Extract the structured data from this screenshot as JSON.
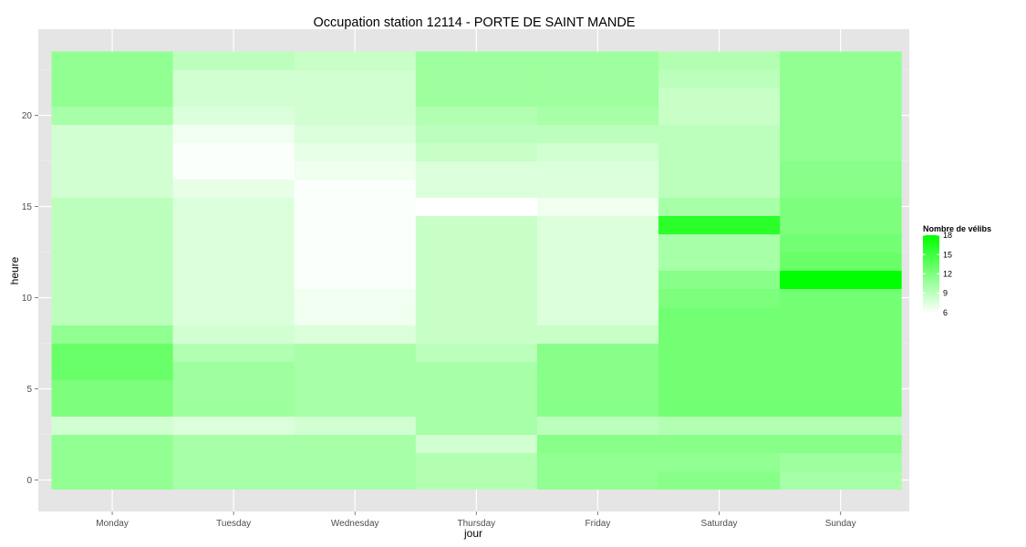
{
  "chart_data": {
    "type": "heatmap",
    "title": "Occupation station 12114 - PORTE DE SAINT MANDE",
    "xlabel": "jour",
    "ylabel": "heure",
    "x_categories": [
      "Monday",
      "Tuesday",
      "Wednesday",
      "Thursday",
      "Friday",
      "Saturday",
      "Sunday"
    ],
    "y_hours": [
      0,
      1,
      2,
      3,
      4,
      5,
      6,
      7,
      8,
      9,
      10,
      11,
      12,
      13,
      14,
      15,
      16,
      17,
      18,
      19,
      20,
      21,
      22,
      23
    ],
    "ylim": [
      -0.5,
      23.5
    ],
    "y_ticks": [
      0,
      5,
      10,
      15,
      20
    ],
    "grid": true,
    "legend": {
      "title": "Nombre de vélibs",
      "position": "right",
      "min": 5.8,
      "max": 18,
      "ticks": [
        6,
        9,
        12,
        15,
        18
      ],
      "low_color": "#ffffff",
      "high_color": "#00ff00"
    },
    "series": [
      {
        "name": "Monday",
        "values": [
          11,
          11,
          11,
          8,
          12,
          12,
          13,
          13,
          11,
          9,
          9,
          9,
          9,
          9,
          9,
          9,
          8,
          8,
          8,
          8,
          10,
          11,
          11,
          11
        ]
      },
      {
        "name": "Tuesday",
        "values": [
          10,
          10,
          10,
          7.5,
          10.5,
          10.5,
          10.5,
          9.5,
          8,
          7.5,
          7.5,
          7.5,
          7.5,
          7.5,
          7.5,
          7.5,
          7,
          6,
          6,
          6.5,
          7.5,
          8,
          8,
          9
        ]
      },
      {
        "name": "Wednesday",
        "values": [
          10,
          10,
          10,
          8,
          10,
          10,
          10,
          10,
          7.5,
          6.5,
          6.5,
          6,
          6,
          6,
          6,
          6,
          6,
          6.5,
          7,
          7.5,
          8,
          8,
          8,
          8.5
        ]
      },
      {
        "name": "Thursday",
        "values": [
          9.5,
          9.5,
          8,
          10,
          10,
          10,
          10,
          9,
          8.5,
          8.5,
          8.5,
          8.5,
          8.5,
          8.5,
          8.5,
          5.8,
          7.5,
          7.5,
          8.5,
          9,
          9.5,
          10.5,
          10.5,
          10.5
        ]
      },
      {
        "name": "Friday",
        "values": [
          11,
          11,
          11.5,
          9,
          11.5,
          11.5,
          11.5,
          11.5,
          8.5,
          7.5,
          7.5,
          7.5,
          7.5,
          7.5,
          7.5,
          6.5,
          7.5,
          7.5,
          8,
          9,
          10,
          10.5,
          10.5,
          10.5
        ]
      },
      {
        "name": "Saturday",
        "values": [
          11.5,
          11,
          11.5,
          9.5,
          12.5,
          12.5,
          12.5,
          12.5,
          12.5,
          12.5,
          12,
          11.5,
          10,
          10,
          16,
          10,
          9,
          9,
          9,
          9,
          8.5,
          8.5,
          9,
          9.5
        ]
      },
      {
        "name": "Sunday",
        "values": [
          10,
          10.5,
          11.5,
          9.5,
          12.5,
          12.5,
          12.5,
          12.5,
          12.5,
          12.5,
          12.5,
          18,
          13,
          12.5,
          12,
          12,
          11.5,
          11.5,
          11,
          11,
          11,
          11,
          11,
          11
        ]
      }
    ]
  }
}
